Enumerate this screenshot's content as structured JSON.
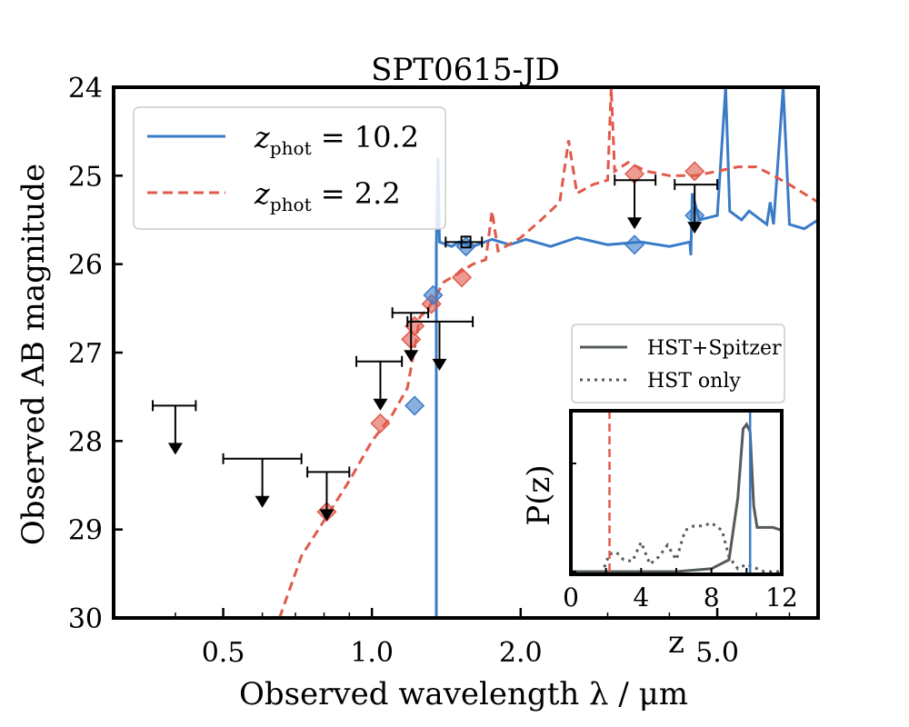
{
  "chart_data": {
    "type": "line",
    "title": "SPT0615-JD",
    "xlabel": "Observed wavelength λ / μm",
    "ylabel": "Observed AB magnitude",
    "xscale": "log",
    "xlim": [
      0.3,
      8.0
    ],
    "ylim": [
      30,
      24
    ],
    "yaxis_inverted": true,
    "xticks": [
      0.5,
      1.0,
      2.0,
      5.0
    ],
    "xtick_labels": [
      "0.5",
      "1.0",
      "2.0",
      "5.0"
    ],
    "yticks": [
      24,
      25,
      26,
      27,
      28,
      29,
      30
    ],
    "ytick_labels": [
      "24",
      "25",
      "26",
      "27",
      "28",
      "29",
      "30"
    ],
    "legend": {
      "location": "upper-left",
      "entries": [
        {
          "label": "z",
          "sub": "phot",
          "rest": " = 10.2",
          "color": "#3a7bc8",
          "style": "solid"
        },
        {
          "label": "z",
          "sub": "phot",
          "rest": " = 2.2",
          "color": "#e05a4b",
          "style": "dashed"
        }
      ]
    },
    "series": [
      {
        "name": "z_phot = 10.2",
        "color": "#3a7bc8",
        "style": "solid",
        "points": [
          [
            1.35,
            30
          ],
          [
            1.35,
            25.8
          ],
          [
            1.36,
            24.8
          ],
          [
            1.37,
            25.75
          ],
          [
            1.45,
            25.8
          ],
          [
            1.5,
            25.75
          ],
          [
            1.6,
            25.8
          ],
          [
            1.75,
            25.72
          ],
          [
            1.9,
            25.78
          ],
          [
            2.05,
            25.72
          ],
          [
            2.3,
            25.8
          ],
          [
            2.6,
            25.7
          ],
          [
            3.0,
            25.78
          ],
          [
            3.5,
            25.75
          ],
          [
            4.0,
            25.8
          ],
          [
            4.4,
            25.75
          ],
          [
            4.42,
            25.9
          ],
          [
            4.45,
            25.2
          ],
          [
            4.6,
            25.5
          ],
          [
            5.0,
            25.45
          ],
          [
            5.2,
            24.0
          ],
          [
            5.3,
            25.4
          ],
          [
            5.6,
            25.5
          ],
          [
            5.8,
            25.4
          ],
          [
            6.3,
            25.55
          ],
          [
            6.4,
            25.3
          ],
          [
            6.5,
            25.55
          ],
          [
            6.8,
            24.0
          ],
          [
            7.0,
            25.55
          ],
          [
            7.5,
            25.6
          ],
          [
            8.0,
            25.5
          ]
        ]
      },
      {
        "name": "z_phot = 2.2",
        "color": "#e05a4b",
        "style": "dashed",
        "points": [
          [
            0.65,
            30
          ],
          [
            0.72,
            29.3
          ],
          [
            0.8,
            28.9
          ],
          [
            0.9,
            28.45
          ],
          [
            1.0,
            28.0
          ],
          [
            1.1,
            27.7
          ],
          [
            1.18,
            27.4
          ],
          [
            1.22,
            26.95
          ],
          [
            1.25,
            26.6
          ],
          [
            1.3,
            26.5
          ],
          [
            1.4,
            26.2
          ],
          [
            1.5,
            26.1
          ],
          [
            1.6,
            26.0
          ],
          [
            1.7,
            25.95
          ],
          [
            1.75,
            25.4
          ],
          [
            1.8,
            25.85
          ],
          [
            2.0,
            25.7
          ],
          [
            2.2,
            25.5
          ],
          [
            2.4,
            25.3
          ],
          [
            2.5,
            24.6
          ],
          [
            2.6,
            25.2
          ],
          [
            2.8,
            25.1
          ],
          [
            3.0,
            25.05
          ],
          [
            3.05,
            24.0
          ],
          [
            3.1,
            24.95
          ],
          [
            3.3,
            24.85
          ],
          [
            3.6,
            24.95
          ],
          [
            4.0,
            25.0
          ],
          [
            4.5,
            25.0
          ],
          [
            5.0,
            24.95
          ],
          [
            5.5,
            24.9
          ],
          [
            6.0,
            24.9
          ],
          [
            6.5,
            25.0
          ],
          [
            7.0,
            25.1
          ],
          [
            8.0,
            25.3
          ]
        ]
      }
    ],
    "points_blue_diamonds": [
      [
        1.22,
        27.6
      ],
      [
        1.33,
        26.35
      ],
      [
        1.55,
        25.8
      ],
      [
        3.4,
        25.78
      ],
      [
        4.5,
        25.45
      ]
    ],
    "points_red_diamonds": [
      [
        0.81,
        28.8
      ],
      [
        1.04,
        27.8
      ],
      [
        1.2,
        26.85
      ],
      [
        1.22,
        26.7
      ],
      [
        1.32,
        26.45
      ],
      [
        1.52,
        26.15
      ],
      [
        3.4,
        24.98
      ],
      [
        4.5,
        24.95
      ]
    ],
    "upper_limits": [
      {
        "x": 0.4,
        "y": 27.6,
        "xerr": [
          0.36,
          0.44
        ]
      },
      {
        "x": 0.6,
        "y": 28.2,
        "xerr": [
          0.5,
          0.72
        ]
      },
      {
        "x": 0.81,
        "y": 28.35,
        "xerr": [
          0.74,
          0.9
        ]
      },
      {
        "x": 1.04,
        "y": 27.1,
        "xerr": [
          0.93,
          1.15
        ]
      },
      {
        "x": 1.2,
        "y": 26.55,
        "xerr": [
          1.1,
          1.3
        ]
      },
      {
        "x": 1.37,
        "y": 26.65,
        "xerr": [
          1.18,
          1.6
        ]
      },
      {
        "x": 3.4,
        "y": 25.05,
        "xerr": [
          3.1,
          3.75
        ]
      },
      {
        "x": 4.5,
        "y": 25.1,
        "xerr": [
          4.1,
          5.0
        ]
      }
    ],
    "errorbar_points": [
      {
        "x": 1.55,
        "y": 25.75,
        "xerr": [
          1.41,
          1.67
        ]
      }
    ],
    "inset": {
      "type": "line",
      "ylabel": "P(z)",
      "xlabel": "z",
      "xlim": [
        0,
        12
      ],
      "xticks": [
        0,
        4,
        8,
        12
      ],
      "xtick_labels": [
        "0",
        "4",
        "8",
        "12"
      ],
      "vlines": [
        {
          "x": 2.2,
          "color": "#e05a4b",
          "style": "dashed"
        },
        {
          "x": 10.2,
          "color": "#3a7bc8",
          "style": "solid"
        }
      ],
      "legend": [
        {
          "label": "HST+Spitzer",
          "color": "#555b5b",
          "style": "solid"
        },
        {
          "label": "HST only",
          "color": "#555b5b",
          "style": "dotted"
        }
      ],
      "series": [
        {
          "name": "HST+Spitzer",
          "style": "solid",
          "x": [
            0,
            2,
            4,
            6,
            8,
            9,
            9.5,
            9.8,
            10.0,
            10.2,
            10.4,
            10.6,
            11,
            11.5,
            12
          ],
          "y": [
            0.0,
            0.0,
            0.0,
            0.0,
            0.02,
            0.08,
            0.5,
            0.97,
            1.0,
            0.95,
            0.45,
            0.3,
            0.3,
            0.3,
            0.28
          ]
        },
        {
          "name": "HST only",
          "style": "dotted",
          "x": [
            0,
            1.8,
            2.2,
            2.6,
            3.0,
            3.5,
            4.0,
            4.5,
            5.0,
            5.5,
            6.0,
            6.5,
            7.0,
            7.5,
            8.0,
            8.6,
            9.0,
            9.5,
            10.0,
            11.0,
            12.0
          ],
          "y": [
            0.0,
            0.0,
            0.12,
            0.13,
            0.08,
            0.07,
            0.2,
            0.05,
            0.1,
            0.18,
            0.08,
            0.28,
            0.31,
            0.31,
            0.33,
            0.28,
            0.1,
            0.02,
            0.05,
            0.0,
            0.0
          ]
        }
      ]
    }
  }
}
